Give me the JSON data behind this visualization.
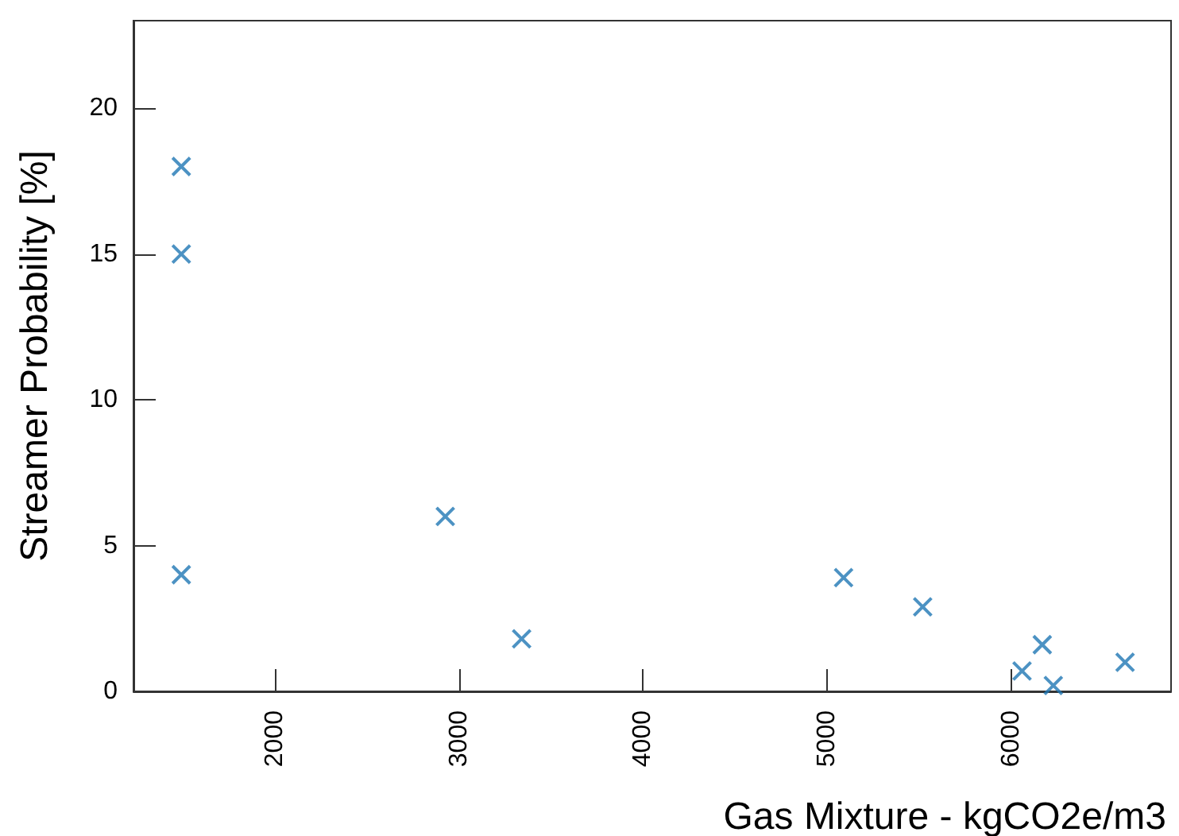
{
  "chart_data": {
    "type": "scatter",
    "xlabel": "Gas Mixture - kgCO2e/m3",
    "ylabel": "Streamer Probability [%]",
    "x": [
      1490,
      1490,
      1490,
      2925,
      3340,
      5090,
      5520,
      6060,
      6170,
      6230,
      6620
    ],
    "values": [
      18,
      15,
      4,
      6,
      1.8,
      3.9,
      2.9,
      0.7,
      1.6,
      0.2,
      1.0
    ],
    "color": "#1f77b4",
    "marker": "cross",
    "xlim": [
      1230,
      6870
    ],
    "xticks": [
      2000,
      3000,
      4000,
      5000,
      6000
    ],
    "ylim": [
      0,
      23
    ],
    "yticks": [
      0,
      5,
      10,
      15,
      20
    ],
    "grid": false
  }
}
